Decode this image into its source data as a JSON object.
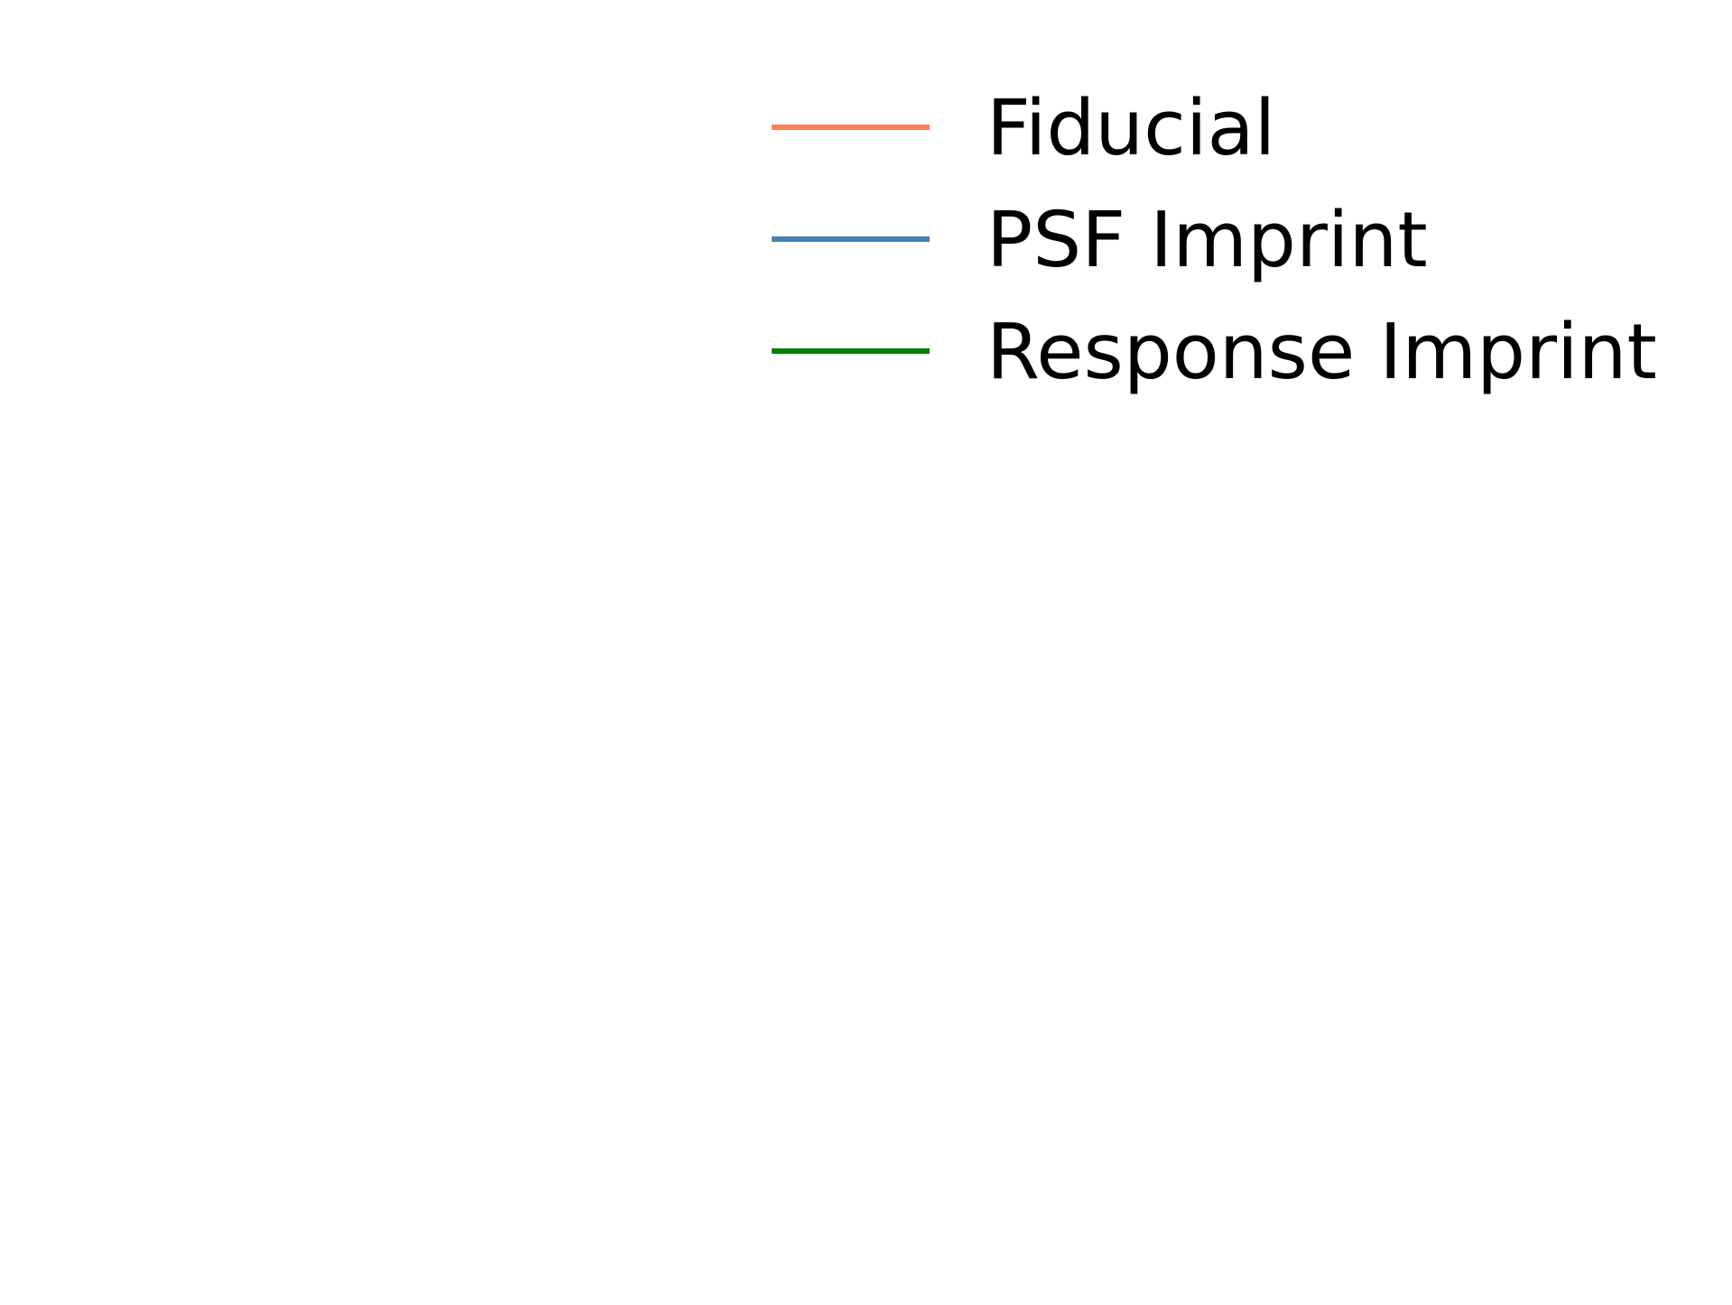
{
  "chart_data": {
    "type": "line",
    "title": "",
    "xlabel": "",
    "ylabel": "",
    "axes_visible": false,
    "grid": false,
    "legend_placement": "top-right",
    "series": [
      {
        "name": "Fiducial",
        "color": "#ff7f50",
        "values": []
      },
      {
        "name": "PSF Imprint",
        "color": "#4682b4",
        "values": []
      },
      {
        "name": "Response Imprint",
        "color": "#008000",
        "values": []
      }
    ]
  }
}
